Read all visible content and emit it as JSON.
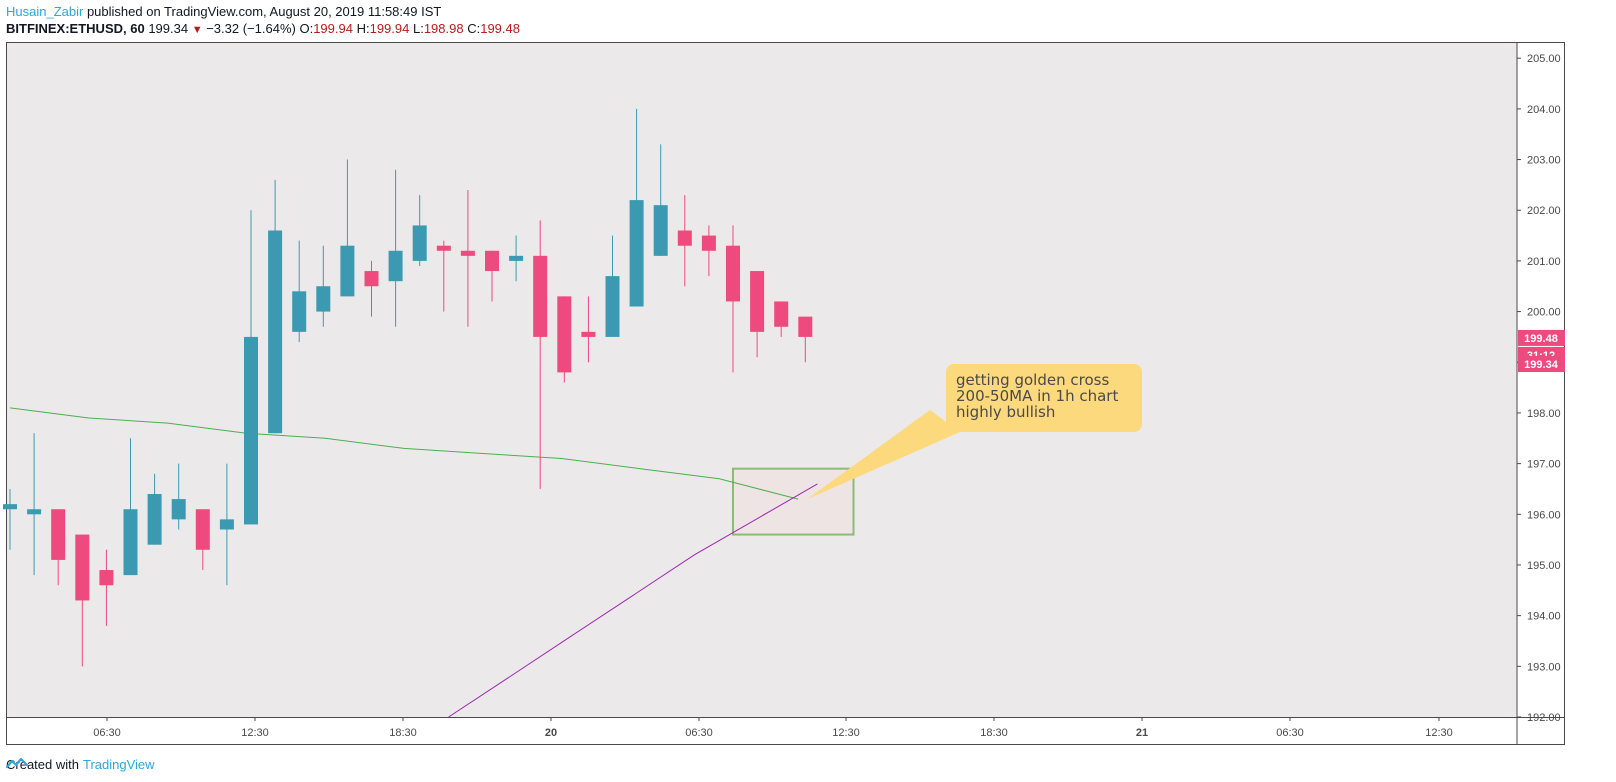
{
  "header": {
    "author": "Husain_Zabir",
    "published_text": " published on TradingView.com, August 20, 2019 11:58:49 IST",
    "symbol": "BITFINEX:ETHUSD, 60",
    "last": "199.34",
    "change": "−3.32 (−1.64%)",
    "o_label": "O:",
    "o_value": "199.94",
    "h_label": "H:",
    "h_value": "199.94",
    "l_label": "L:",
    "l_value": "198.98",
    "c_label": "C:",
    "c_value": "199.48"
  },
  "footer": {
    "created_with": "Created with",
    "brand": "TradingView"
  },
  "annotation": {
    "text": "getting golden cross\n200-50MA in 1h chart\nhighly bullish"
  },
  "price_tags": {
    "upper": "199.48",
    "countdown": "31:12",
    "lower": "199.34"
  },
  "colors": {
    "up": "#3b9ab2",
    "down": "#ef4a7d",
    "ma200": "#4caf50",
    "ma50": "#9c27b0",
    "plot_bg": "#ece9ea",
    "callout": "#fcd97d",
    "box": "#8dbb74"
  },
  "chart_data": {
    "type": "candlestick",
    "ylim": [
      192,
      205.3
    ],
    "y_ticks": [
      "192.00",
      "193.00",
      "194.00",
      "195.00",
      "196.00",
      "197.00",
      "198.00",
      "199.00",
      "200.00",
      "201.00",
      "202.00",
      "203.00",
      "204.00",
      "205.00"
    ],
    "x_tick_labels": [
      "06:30",
      "12:30",
      "18:30",
      "20",
      "06:30",
      "12:30",
      "18:30",
      "21",
      "06:30",
      "12:30"
    ],
    "candles": [
      {
        "o": 196.1,
        "h": 196.5,
        "l": 195.3,
        "c": 196.2
      },
      {
        "o": 196.0,
        "h": 197.6,
        "l": 194.8,
        "c": 196.1
      },
      {
        "o": 196.1,
        "h": 196.1,
        "l": 194.6,
        "c": 195.1
      },
      {
        "o": 195.6,
        "h": 195.6,
        "l": 193.0,
        "c": 194.3
      },
      {
        "o": 194.9,
        "h": 195.3,
        "l": 193.8,
        "c": 194.6
      },
      {
        "o": 194.8,
        "h": 197.5,
        "l": 194.8,
        "c": 196.1
      },
      {
        "o": 195.4,
        "h": 196.8,
        "l": 195.4,
        "c": 196.4
      },
      {
        "o": 195.9,
        "h": 197.0,
        "l": 195.7,
        "c": 196.3
      },
      {
        "o": 196.1,
        "h": 196.1,
        "l": 194.9,
        "c": 195.3
      },
      {
        "o": 195.7,
        "h": 197.0,
        "l": 194.6,
        "c": 195.9
      },
      {
        "o": 195.8,
        "h": 202.0,
        "l": 195.8,
        "c": 199.5
      },
      {
        "o": 197.6,
        "h": 202.6,
        "l": 197.6,
        "c": 201.6
      },
      {
        "o": 199.6,
        "h": 201.4,
        "l": 199.4,
        "c": 200.4
      },
      {
        "o": 200.0,
        "h": 201.3,
        "l": 199.7,
        "c": 200.5
      },
      {
        "o": 200.3,
        "h": 203.0,
        "l": 200.3,
        "c": 201.3
      },
      {
        "o": 200.8,
        "h": 201.0,
        "l": 199.9,
        "c": 200.5
      },
      {
        "o": 200.6,
        "h": 202.8,
        "l": 199.7,
        "c": 201.2
      },
      {
        "o": 201.0,
        "h": 202.3,
        "l": 200.9,
        "c": 201.7
      },
      {
        "o": 201.3,
        "h": 201.4,
        "l": 200.0,
        "c": 201.2
      },
      {
        "o": 201.2,
        "h": 202.4,
        "l": 199.7,
        "c": 201.1
      },
      {
        "o": 201.2,
        "h": 201.2,
        "l": 200.2,
        "c": 200.8
      },
      {
        "o": 201.0,
        "h": 201.5,
        "l": 200.6,
        "c": 201.1
      },
      {
        "o": 201.1,
        "h": 201.8,
        "l": 196.5,
        "c": 199.5
      },
      {
        "o": 200.3,
        "h": 200.3,
        "l": 198.6,
        "c": 198.8
      },
      {
        "o": 199.6,
        "h": 200.3,
        "l": 199.0,
        "c": 199.5
      },
      {
        "o": 199.5,
        "h": 201.5,
        "l": 199.5,
        "c": 200.7
      },
      {
        "o": 200.1,
        "h": 204.0,
        "l": 200.1,
        "c": 202.2
      },
      {
        "o": 201.1,
        "h": 203.3,
        "l": 201.1,
        "c": 202.1
      },
      {
        "o": 201.6,
        "h": 202.3,
        "l": 200.5,
        "c": 201.3
      },
      {
        "o": 201.5,
        "h": 201.7,
        "l": 200.7,
        "c": 201.2
      },
      {
        "o": 201.3,
        "h": 201.7,
        "l": 198.8,
        "c": 200.2
      },
      {
        "o": 200.8,
        "h": 200.8,
        "l": 199.1,
        "c": 199.6
      },
      {
        "o": 200.2,
        "h": 200.2,
        "l": 199.5,
        "c": 199.7
      },
      {
        "o": 199.9,
        "h": 199.9,
        "l": 199.0,
        "c": 199.5
      }
    ],
    "ma200": [
      198.1,
      197.9,
      197.8,
      197.6,
      197.5,
      197.3,
      197.2,
      197.1,
      196.9,
      196.7,
      196.3
    ],
    "ma50": [
      192.0,
      192.8,
      193.6,
      194.4,
      195.2,
      195.9,
      196.6
    ],
    "annotation_box": {
      "x_from": 30,
      "x_to": 35,
      "y_from": 195.6,
      "y_to": 196.9
    }
  }
}
